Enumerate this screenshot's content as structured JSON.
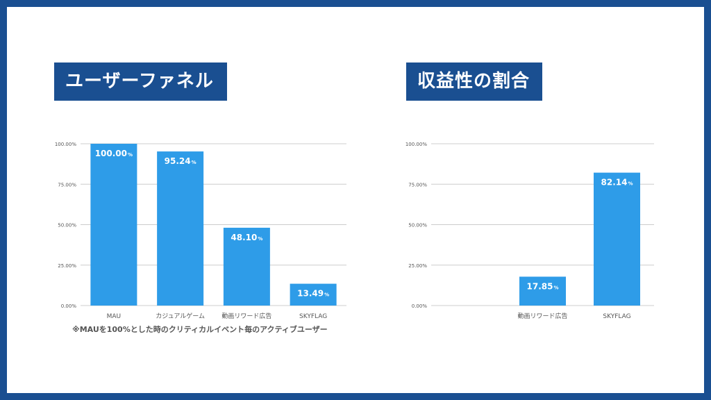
{
  "colors": {
    "frame": "#1a4f91",
    "bar": "#2e9ce8",
    "grid": "#cccccc",
    "text": "#555555",
    "barLabel": "#ffffff"
  },
  "left_panel": {
    "title": "ユーザーファネル"
  },
  "right_panel": {
    "title": "収益性の割合"
  },
  "note": "※MAUを100%とした時のクリティカルイベント毎のアクティブユーザー",
  "chart_data": [
    {
      "type": "bar",
      "categories": [
        "MAU",
        "カジュアルゲーム",
        "動画リワード広告",
        "SKYFLAG"
      ],
      "values": [
        100.0,
        95.24,
        48.1,
        13.49
      ],
      "value_labels": [
        "100.00",
        "95.24",
        "48.10",
        "13.49"
      ],
      "value_suffix": "%",
      "yticks": [
        "0.00%",
        "25.00%",
        "50.00%",
        "75.00%",
        "100.00%"
      ],
      "ylim": [
        0,
        100
      ],
      "grid": true
    },
    {
      "type": "bar",
      "categories": [
        "",
        "動画リワード広告",
        "SKYFLAG"
      ],
      "values": [
        null,
        17.85,
        82.14
      ],
      "value_labels": [
        "",
        "17.85",
        "82.14"
      ],
      "value_suffix": "%",
      "yticks": [
        "0.00%",
        "25.00%",
        "50.00%",
        "75.00%",
        "100.00%"
      ],
      "ylim": [
        0,
        100
      ],
      "grid": true
    }
  ]
}
